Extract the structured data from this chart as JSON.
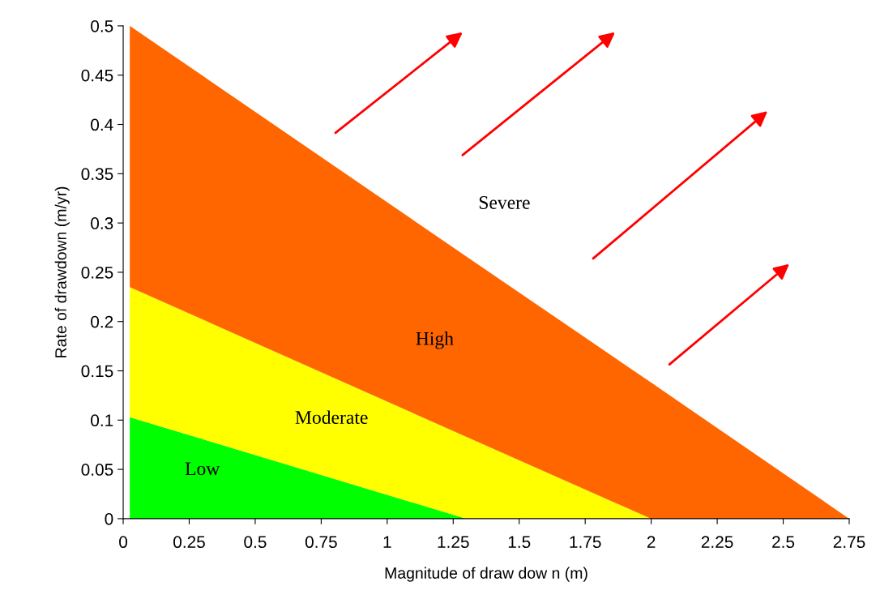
{
  "chart_data": {
    "type": "area",
    "stacked": true,
    "xlabel": "Magnitude of draw dow n (m)",
    "ylabel": "Rate of drawdown (m/yr)",
    "x": [
      0.025,
      1.3,
      2.0,
      2.75
    ],
    "series": [
      {
        "name": "Low",
        "color": "#00ff00",
        "values": [
          0.103,
          0,
          0,
          0
        ]
      },
      {
        "name": "Moderate",
        "color": "#ffff00",
        "values": [
          0.132,
          0.083,
          0,
          0
        ]
      },
      {
        "name": "High",
        "color": "#ff6600",
        "values": [
          0.265,
          0.183,
          0.138,
          0
        ]
      }
    ],
    "xlim": [
      0,
      2.75
    ],
    "ylim": [
      0,
      0.5
    ],
    "xticks": [
      0,
      0.25,
      0.5,
      0.75,
      1,
      1.25,
      1.5,
      1.75,
      2,
      2.25,
      2.5,
      2.75
    ],
    "yticks": [
      0,
      0.05,
      0.1,
      0.15,
      0.2,
      0.25,
      0.3,
      0.35,
      0.4,
      0.45,
      0.5
    ],
    "annotations": [
      "Severe"
    ],
    "grid": false
  }
}
